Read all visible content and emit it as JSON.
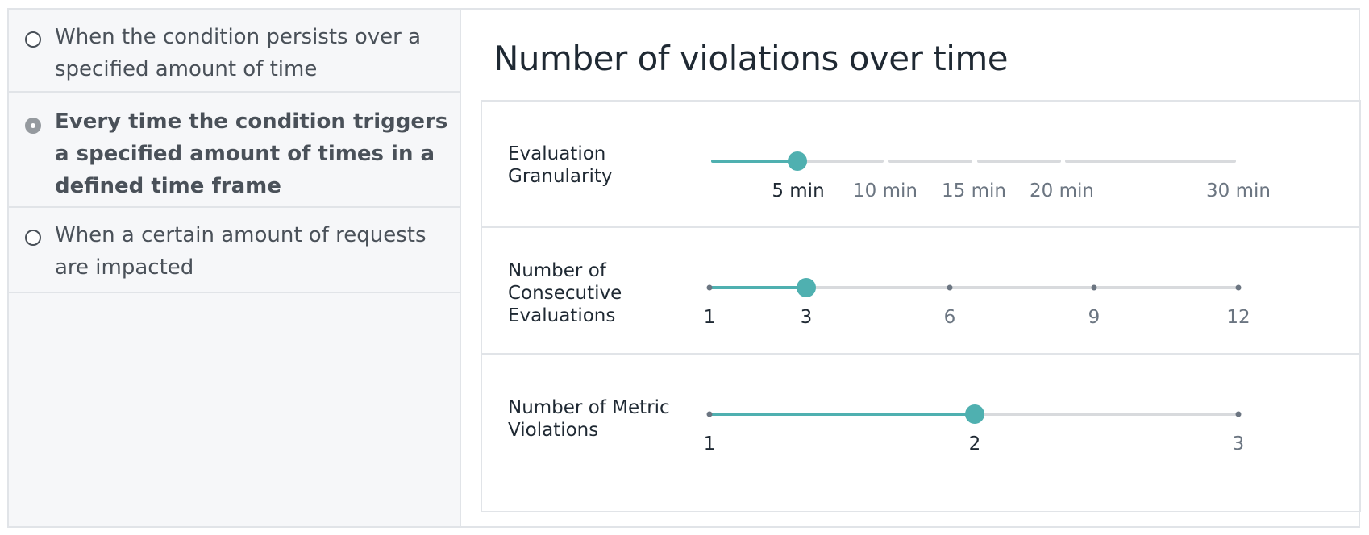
{
  "options": [
    {
      "label": "When the condition persists over a specified amount of time",
      "checked": false
    },
    {
      "label": "Every time the condition triggers a specified amount of times in a defined time frame",
      "checked": true
    },
    {
      "label": "When a certain amount of requests are impacted",
      "checked": false
    }
  ],
  "main": {
    "title": "Number of violations over time",
    "sliders": [
      {
        "label": "Evaluation Granularity",
        "ticks": [
          "5 min",
          "10 min",
          "15 min",
          "20 min",
          "30 min"
        ],
        "value": "5 min"
      },
      {
        "label": "Number of Consecutive Evaluations",
        "ticks": [
          "1",
          "3",
          "6",
          "9",
          "12"
        ],
        "value": "3"
      },
      {
        "label": "Number of Metric Violations",
        "ticks": [
          "1",
          "2",
          "3"
        ],
        "value": "2"
      }
    ]
  },
  "colors": {
    "accent": "#4fb0b0",
    "track": "#d8dadd",
    "text": "#1f2933",
    "muted": "#6b7581"
  }
}
